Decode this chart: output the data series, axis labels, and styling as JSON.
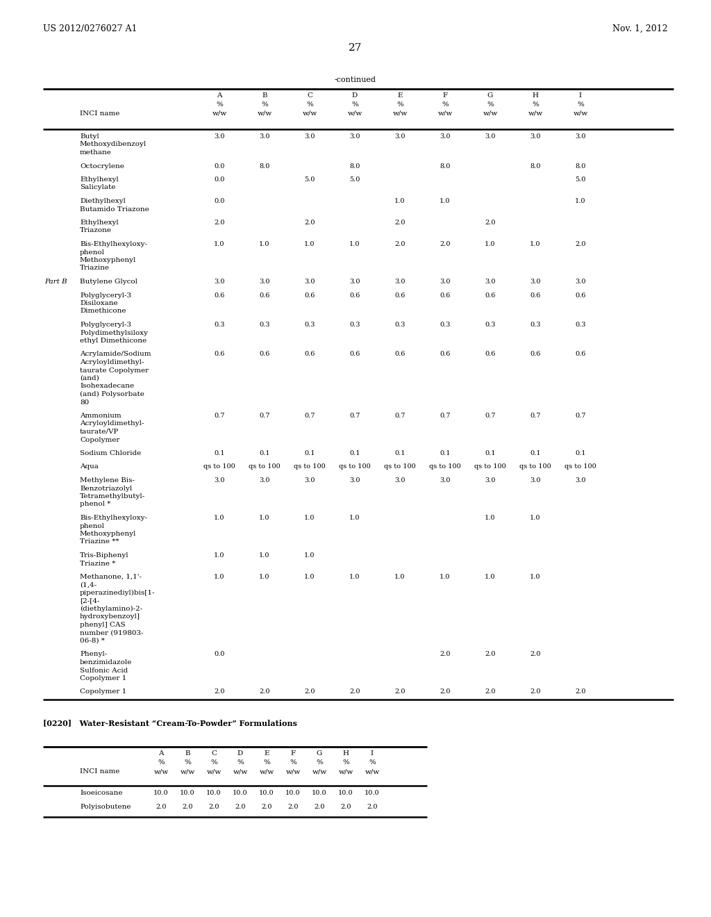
{
  "header_left": "US 2012/0276027 A1",
  "header_right": "Nov. 1, 2012",
  "page_number": "27",
  "continued_label": "-continued",
  "col_headers": [
    "A",
    "B",
    "C",
    "D",
    "E",
    "F",
    "G",
    "H",
    "I"
  ],
  "table1_rows": [
    {
      "part": "",
      "inci": "Butyl\nMethoxydibenzoyl\nmethane",
      "vals": [
        "3.0",
        "3.0",
        "3.0",
        "3.0",
        "3.0",
        "3.0",
        "3.0",
        "3.0",
        "3.0"
      ]
    },
    {
      "part": "",
      "inci": "Octocrylene",
      "vals": [
        "0.0",
        "8.0",
        "",
        "8.0",
        "",
        "8.0",
        "",
        "8.0",
        "8.0"
      ]
    },
    {
      "part": "",
      "inci": "Ethylhexyl\nSalicylate",
      "vals": [
        "0.0",
        "",
        "5.0",
        "5.0",
        "",
        "",
        "",
        "",
        "5.0"
      ]
    },
    {
      "part": "",
      "inci": "Diethylhexyl\nButamido Triazone",
      "vals": [
        "0.0",
        "",
        "",
        "",
        "1.0",
        "1.0",
        "",
        "",
        "1.0"
      ]
    },
    {
      "part": "",
      "inci": "Ethylhexyl\nTriazone",
      "vals": [
        "2.0",
        "",
        "2.0",
        "",
        "2.0",
        "",
        "2.0",
        "",
        ""
      ]
    },
    {
      "part": "",
      "inci": "Bis-Ethylhexyloxy-\nphenol\nMethoxyphenyl\nTriazine",
      "vals": [
        "1.0",
        "1.0",
        "1.0",
        "1.0",
        "2.0",
        "2.0",
        "1.0",
        "1.0",
        "2.0"
      ]
    },
    {
      "part": "Part B",
      "inci": "Butylene Glycol",
      "vals": [
        "3.0",
        "3.0",
        "3.0",
        "3.0",
        "3.0",
        "3.0",
        "3.0",
        "3.0",
        "3.0"
      ]
    },
    {
      "part": "",
      "inci": "Polyglyceryl-3\nDisiloxane\nDimethicone",
      "vals": [
        "0.6",
        "0.6",
        "0.6",
        "0.6",
        "0.6",
        "0.6",
        "0.6",
        "0.6",
        "0.6"
      ]
    },
    {
      "part": "",
      "inci": "Polyglyceryl-3\nPolydimethylsiloxy\nethyl Dimethicone",
      "vals": [
        "0.3",
        "0.3",
        "0.3",
        "0.3",
        "0.3",
        "0.3",
        "0.3",
        "0.3",
        "0.3"
      ]
    },
    {
      "part": "",
      "inci": "Acrylamide/Sodium\nAcryloyldimethyl-\ntaurate Copolymer\n(and)\nIsohexadecane\n(and) Polysorbate\n80",
      "vals": [
        "0.6",
        "0.6",
        "0.6",
        "0.6",
        "0.6",
        "0.6",
        "0.6",
        "0.6",
        "0.6"
      ]
    },
    {
      "part": "",
      "inci": "Ammonium\nAcryloyldimethyl-\ntaurate/VP\nCopolymer",
      "vals": [
        "0.7",
        "0.7",
        "0.7",
        "0.7",
        "0.7",
        "0.7",
        "0.7",
        "0.7",
        "0.7"
      ]
    },
    {
      "part": "",
      "inci": "Sodium Chloride",
      "vals": [
        "0.1",
        "0.1",
        "0.1",
        "0.1",
        "0.1",
        "0.1",
        "0.1",
        "0.1",
        "0.1"
      ]
    },
    {
      "part": "",
      "inci": "Aqua",
      "vals": [
        "qs to 100",
        "qs to 100",
        "qs to 100",
        "qs to 100",
        "qs to 100",
        "qs to 100",
        "qs to 100",
        "qs to 100",
        "qs to 100"
      ]
    },
    {
      "part": "",
      "inci": "Methylene Bis-\nBenzotriazolyl\nTetramethylbutyl-\nphenol *",
      "vals": [
        "3.0",
        "3.0",
        "3.0",
        "3.0",
        "3.0",
        "3.0",
        "3.0",
        "3.0",
        "3.0"
      ]
    },
    {
      "part": "",
      "inci": "Bis-Ethylhexyloxy-\nphenol\nMethoxyphenyl\nTriazine **",
      "vals": [
        "1.0",
        "1.0",
        "1.0",
        "1.0",
        "",
        "",
        "1.0",
        "1.0",
        ""
      ]
    },
    {
      "part": "",
      "inci": "Tris-Biphenyl\nTriazine *",
      "vals": [
        "1.0",
        "1.0",
        "1.0",
        "",
        "",
        "",
        "",
        "",
        ""
      ]
    },
    {
      "part": "",
      "inci": "Methanone, 1,1'-\n(1,4-\npiperazinediyl)bis[1-\n[2-[4-\n(diethylamino)-2-\nhydroxybenzoyl]\nphenyl] CAS\nnumber (919803-\n06-8) *",
      "vals": [
        "1.0",
        "1.0",
        "1.0",
        "1.0",
        "1.0",
        "1.0",
        "1.0",
        "1.0",
        ""
      ]
    },
    {
      "part": "",
      "inci": "Phenyl-\nbenzimidazole\nSulfonic Acid\nCopolymer 1",
      "vals": [
        "0.0",
        "",
        "",
        "",
        "",
        "2.0",
        "2.0",
        "2.0",
        ""
      ]
    },
    {
      "part": "",
      "inci": "Copolymer 1",
      "vals": [
        "2.0",
        "2.0",
        "2.0",
        "2.0",
        "2.0",
        "2.0",
        "2.0",
        "2.0",
        "2.0"
      ]
    }
  ],
  "section2_title": "[0220]   Water-Resistant “Cream-To-Powder” Formulations",
  "table2_col_headers": [
    "A",
    "B",
    "C",
    "D",
    "E",
    "F",
    "G",
    "H",
    "I"
  ],
  "table2_rows": [
    {
      "inci": "Isoeicosane",
      "vals": [
        "10.0",
        "10.0",
        "10.0",
        "10.0",
        "10.0",
        "10.0",
        "10.0",
        "10.0",
        "10.0"
      ]
    },
    {
      "inci": "Polyisobutene",
      "vals": [
        "2.0",
        "2.0",
        "2.0",
        "2.0",
        "2.0",
        "2.0",
        "2.0",
        "2.0",
        "2.0"
      ]
    }
  ],
  "bg_color": "#ffffff",
  "text_color": "#000000"
}
